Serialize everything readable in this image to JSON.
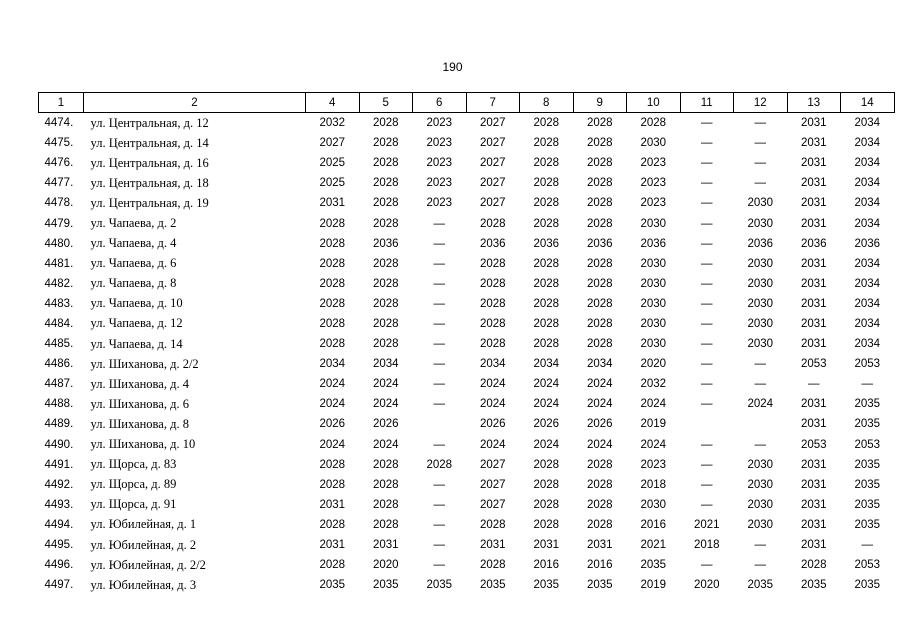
{
  "header": {
    "page_number": "190"
  },
  "table": {
    "columns": [
      "1",
      "2",
      "4",
      "5",
      "6",
      "7",
      "8",
      "9",
      "10",
      "11",
      "12",
      "13",
      "14"
    ],
    "rows": [
      [
        "4474.",
        "ул. Центральная, д. 12",
        2032,
        2028,
        2023,
        2027,
        2028,
        2028,
        2028,
        "—",
        "—",
        2031,
        2034
      ],
      [
        "4475.",
        "ул. Центральная, д. 14",
        2027,
        2028,
        2023,
        2027,
        2028,
        2028,
        2030,
        "—",
        "—",
        2031,
        2034
      ],
      [
        "4476.",
        "ул. Центральная, д. 16",
        2025,
        2028,
        2023,
        2027,
        2028,
        2028,
        2023,
        "—",
        "—",
        2031,
        2034
      ],
      [
        "4477.",
        "ул. Центральная, д. 18",
        2025,
        2028,
        2023,
        2027,
        2028,
        2028,
        2023,
        "—",
        "—",
        2031,
        2034
      ],
      [
        "4478.",
        "ул. Центральная, д. 19",
        2031,
        2028,
        2023,
        2027,
        2028,
        2028,
        2023,
        "—",
        2030,
        2031,
        2034
      ],
      [
        "4479.",
        "ул. Чапаева, д. 2",
        2028,
        2028,
        "—",
        2028,
        2028,
        2028,
        2030,
        "—",
        2030,
        2031,
        2034
      ],
      [
        "4480.",
        "ул. Чапаева, д. 4",
        2028,
        2036,
        "—",
        2036,
        2036,
        2036,
        2036,
        "—",
        2036,
        2036,
        2036
      ],
      [
        "4481.",
        "ул. Чапаева, д. 6",
        2028,
        2028,
        "—",
        2028,
        2028,
        2028,
        2030,
        "—",
        2030,
        2031,
        2034
      ],
      [
        "4482.",
        "ул. Чапаева, д. 8",
        2028,
        2028,
        "—",
        2028,
        2028,
        2028,
        2030,
        "—",
        2030,
        2031,
        2034
      ],
      [
        "4483.",
        "ул. Чапаева, д. 10",
        2028,
        2028,
        "—",
        2028,
        2028,
        2028,
        2030,
        "—",
        2030,
        2031,
        2034
      ],
      [
        "4484.",
        "ул. Чапаева, д. 12",
        2028,
        2028,
        "—",
        2028,
        2028,
        2028,
        2030,
        "—",
        2030,
        2031,
        2034
      ],
      [
        "4485.",
        "ул. Чапаева, д. 14",
        2028,
        2028,
        "—",
        2028,
        2028,
        2028,
        2030,
        "—",
        2030,
        2031,
        2034
      ],
      [
        "4486.",
        "ул. Шиханова, д. 2/2",
        2034,
        2034,
        "—",
        2034,
        2034,
        2034,
        2020,
        "—",
        "—",
        2053,
        2053
      ],
      [
        "4487.",
        "ул. Шиханова, д. 4",
        2024,
        2024,
        "—",
        2024,
        2024,
        2024,
        2032,
        "—",
        "—",
        "—",
        "—"
      ],
      [
        "4488.",
        "ул. Шиханова, д. 6",
        2024,
        2024,
        "—",
        2024,
        2024,
        2024,
        2024,
        "—",
        2024,
        2031,
        2035
      ],
      [
        "4489.",
        "ул. Шиханова, д. 8",
        2026,
        2026,
        null,
        2026,
        2026,
        2026,
        2019,
        null,
        null,
        2031,
        2035
      ],
      [
        "4490.",
        "ул. Шиханова, д. 10",
        2024,
        2024,
        "—",
        2024,
        2024,
        2024,
        2024,
        "—",
        "—",
        2053,
        2053
      ],
      [
        "4491.",
        "ул. Щорса, д. 83",
        2028,
        2028,
        2028,
        2027,
        2028,
        2028,
        2023,
        "—",
        2030,
        2031,
        2035
      ],
      [
        "4492.",
        "ул. Щорса, д. 89",
        2028,
        2028,
        "—",
        2027,
        2028,
        2028,
        2018,
        "—",
        2030,
        2031,
        2035
      ],
      [
        "4493.",
        "ул. Щорса, д. 91",
        2031,
        2028,
        "—",
        2027,
        2028,
        2028,
        2030,
        "—",
        2030,
        2031,
        2035
      ],
      [
        "4494.",
        "ул. Юбилейная, д. 1",
        2028,
        2028,
        "—",
        2028,
        2028,
        2028,
        2016,
        2021,
        2030,
        2031,
        2035
      ],
      [
        "4495.",
        "ул. Юбилейная, д. 2",
        2031,
        2031,
        "—",
        2031,
        2031,
        2031,
        2021,
        2018,
        "—",
        2031,
        "—"
      ],
      [
        "4496.",
        "ул. Юбилейная, д. 2/2",
        2028,
        2020,
        "—",
        2028,
        2016,
        2016,
        2035,
        "—",
        "—",
        2028,
        2053
      ],
      [
        "4497.",
        "ул. Юбилейная, д. 3",
        2035,
        2035,
        2035,
        2035,
        2035,
        2035,
        2019,
        2020,
        2035,
        2035,
        2035
      ]
    ]
  }
}
